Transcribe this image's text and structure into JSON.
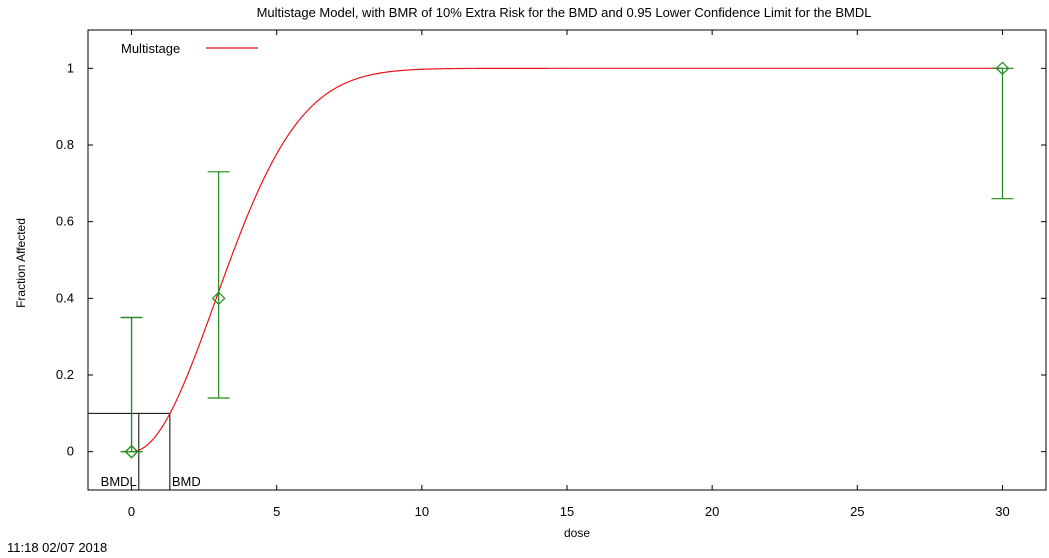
{
  "chart_data": {
    "type": "line",
    "title": "Multistage Model, with BMR of 10% Extra Risk for the BMD and 0.95 Lower Confidence Limit for the BMDL",
    "xlabel": "dose",
    "ylabel": "Fraction Affected",
    "xlim": [
      -1.5,
      31.5
    ],
    "ylim": [
      -0.1,
      1.1
    ],
    "x_ticks": [
      0,
      5,
      10,
      15,
      20,
      25,
      30
    ],
    "y_ticks": [
      0,
      0.2,
      0.4,
      0.6,
      0.8,
      1
    ],
    "series": [
      {
        "name": "Multistage",
        "color": "#e8141b",
        "kind": "fitted-curve",
        "model": {
          "form": "1-exp(-b2*x^2)",
          "b2": 0.06
        }
      }
    ],
    "observations": [
      {
        "dose": 0,
        "response": 0,
        "lower": 0,
        "upper": 0.35
      },
      {
        "dose": 0,
        "response": 0,
        "lower": 0,
        "upper": 0.35
      },
      {
        "dose": 3,
        "response": 0.4,
        "lower": 0.14,
        "upper": 0.73
      },
      {
        "dose": 30,
        "response": 1,
        "lower": 0.66,
        "upper": 1
      }
    ],
    "observation_color": "#1f8b1f",
    "bmr": 0.1,
    "bmd": 1.32,
    "bmdl": 0.25,
    "bmd_label": "BMD",
    "bmdl_label": "BMDL",
    "grid": false,
    "legend_position": "top-left"
  },
  "timestamp": "11:18 02/07 2018"
}
